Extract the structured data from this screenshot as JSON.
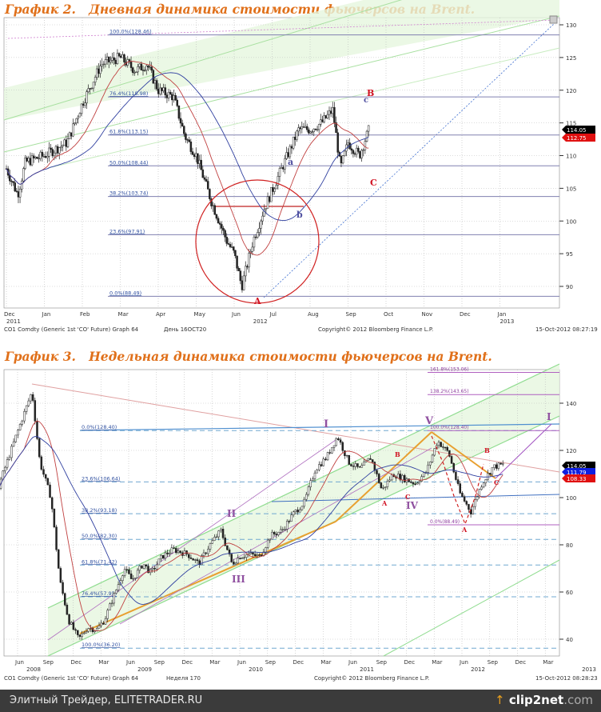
{
  "chart_data": [
    {
      "type": "candlestick",
      "title": "График 2.   Дневная динамика стоимости фьючерсов на Brent.",
      "xlabel": "",
      "ylabel": "",
      "ylim": [
        87,
        131
      ],
      "time_unit": "months since 1-Dec-2011",
      "y_ticks": [
        90,
        95,
        100,
        105,
        110,
        115,
        120,
        125,
        130
      ],
      "x_ticks": [
        "Dec",
        "Jan",
        "Feb",
        "Mar",
        "Apr",
        "May",
        "Jun",
        "Jul",
        "Aug",
        "Sep",
        "Oct",
        "Nov",
        "Dec",
        "Jan"
      ],
      "year_labels": [
        {
          "t": 0,
          "label": "2011"
        },
        {
          "t": 6.5,
          "label": "2012"
        },
        {
          "t": 13,
          "label": "2013"
        }
      ],
      "series": [
        {
          "name": "price",
          "t": [
            0,
            0.3,
            0.5,
            1,
            1.6,
            2,
            2.5,
            3,
            3.4,
            3.7,
            4,
            4.4,
            4.7,
            5,
            5.4,
            5.8,
            6,
            6.2,
            6.5,
            6.8,
            7.1,
            7.4,
            7.7,
            8,
            8.3,
            8.6,
            8.8,
            9,
            9.3,
            9.55
          ],
          "values": [
            108,
            104,
            109,
            110,
            112,
            118,
            124,
            125,
            123,
            124,
            120,
            119,
            113,
            110,
            103,
            97,
            95,
            90,
            97,
            102,
            106,
            110,
            114,
            114,
            115,
            117,
            108,
            112,
            110,
            114
          ]
        }
      ],
      "fib_levels": [
        {
          "label": "100.0%(128.46)",
          "value": 128.46
        },
        {
          "label": "76.4%(118.98)",
          "value": 118.98
        },
        {
          "label": "61.8%(113.15)",
          "value": 113.15
        },
        {
          "label": "50.0%(108.44)",
          "value": 108.44
        },
        {
          "label": "38.2%(103.74)",
          "value": 103.74
        },
        {
          "label": "23.6%(97.91)",
          "value": 97.91
        },
        {
          "label": "0.0%(88.49)",
          "value": 88.49
        }
      ],
      "wave_labels": [
        {
          "text": "A",
          "color": "#d01020"
        },
        {
          "text": "B",
          "color": "#d01020"
        },
        {
          "text": "C",
          "color": "#d01020"
        },
        {
          "text": "a",
          "color": "#5050a0"
        },
        {
          "text": "b",
          "color": "#5050a0"
        },
        {
          "text": "c",
          "color": "#5050a0"
        }
      ],
      "price_tags": [
        {
          "value": "114.05",
          "color": "#000000"
        },
        {
          "value": "112.75",
          "color": "#e01010"
        }
      ],
      "ma_colors": [
        "#c04040",
        "#3040a0"
      ]
    },
    {
      "type": "candlestick",
      "title": "График 3.   Недельная динамика стоимости фьючерсов на Brent.",
      "xlabel": "",
      "ylabel": "",
      "ylim": [
        33,
        155
      ],
      "time_unit": "year",
      "y_ticks": [
        40,
        60,
        80,
        100,
        120,
        140
      ],
      "x_ticks": [
        "Jun",
        "Sep",
        "Dec",
        "Mar",
        "Jun",
        "Sep",
        "Dec",
        "Mar",
        "Jun",
        "Sep",
        "Dec",
        "Mar",
        "Jun",
        "Sep",
        "Dec",
        "Mar",
        "Jun",
        "Sep",
        "Dec",
        "Mar"
      ],
      "year_labels": [
        {
          "t": 2008,
          "label": "2008"
        },
        {
          "t": 2009,
          "label": "2009"
        },
        {
          "t": 2010,
          "label": "2010"
        },
        {
          "t": 2011,
          "label": "2011"
        },
        {
          "t": 2012,
          "label": "2012"
        },
        {
          "t": 2013,
          "label": "2013"
        }
      ],
      "series": [
        {
          "name": "price",
          "t": [
            2008.25,
            2008.42,
            2008.55,
            2008.62,
            2008.72,
            2008.8,
            2008.88,
            2008.97,
            2009.05,
            2009.13,
            2009.2,
            2009.3,
            2009.38,
            2009.45,
            2009.55,
            2009.62,
            2009.72,
            2009.82,
            2009.95,
            2010.05,
            2010.15,
            2010.25,
            2010.35,
            2010.42,
            2010.5,
            2010.6,
            2010.7,
            2010.8,
            2010.9,
            2011.0,
            2011.1,
            2011.2,
            2011.3,
            2011.4,
            2011.5,
            2011.6,
            2011.7,
            2011.8,
            2011.9,
            2012.0,
            2012.1,
            2012.2,
            2012.3,
            2012.4,
            2012.5,
            2012.6,
            2012.7,
            2012.79
          ],
          "values": [
            105,
            128,
            145,
            115,
            100,
            65,
            48,
            40,
            45,
            44,
            48,
            60,
            70,
            65,
            72,
            68,
            75,
            78,
            76,
            72,
            80,
            86,
            72,
            75,
            76,
            75,
            84,
            86,
            93,
            98,
            112,
            117,
            126,
            115,
            112,
            117,
            103,
            110,
            108,
            106,
            111,
            124,
            119,
            102,
            94,
            106,
            113,
            114
          ]
        }
      ],
      "fib_levels": [
        {
          "label": "0.0%(128.40)",
          "value": 128.4
        },
        {
          "label": "23.6%(106.64)",
          "value": 106.64
        },
        {
          "label": "38.2%(93.18)",
          "value": 93.18
        },
        {
          "label": "50.0%(82.30)",
          "value": 82.3
        },
        {
          "label": "61.8%(71.42)",
          "value": 71.42
        },
        {
          "label": "76.4%(57.95)",
          "value": 57.95
        },
        {
          "label": "100.0%(36.20)",
          "value": 36.2
        }
      ],
      "ext_levels": [
        {
          "label": "161.8%(153.06)",
          "value": 153.06
        },
        {
          "label": "138.2%(143.65)",
          "value": 143.65
        },
        {
          "label": "100.0%(128.40)",
          "value": 128.4
        },
        {
          "label": "0.0%(88.49)",
          "value": 88.49
        }
      ],
      "wave_labels": [
        {
          "text": "I",
          "color": "#9050a0"
        },
        {
          "text": "II",
          "color": "#9050a0"
        },
        {
          "text": "III",
          "color": "#9050a0"
        },
        {
          "text": "IV",
          "color": "#9050a0"
        },
        {
          "text": "V",
          "color": "#9050a0"
        },
        {
          "text": "I",
          "color": "#9050a0"
        },
        {
          "text": "A",
          "color": "#d01020"
        },
        {
          "text": "B",
          "color": "#d01020"
        },
        {
          "text": "C",
          "color": "#d01020"
        },
        {
          "text": "B",
          "color": "#d01020"
        },
        {
          "text": "C",
          "color": "#d01020"
        },
        {
          "text": "A",
          "color": "#d01020"
        }
      ],
      "price_tags": [
        {
          "value": "114.05",
          "color": "#000000"
        },
        {
          "value": "111.79",
          "color": "#1020e0"
        },
        {
          "value": "108.33",
          "color": "#e01010"
        }
      ],
      "ma_colors": [
        "#c04040",
        "#3040a0"
      ]
    }
  ],
  "footer1": {
    "source": "CO1 Comdty (Generic 1st 'CO' Future) Graph 64",
    "period": "День 16OCT20",
    "copyright": "Copyright© 2012 Bloomberg Finance L.P.",
    "timestamp": "15-Oct-2012 08:27:19"
  },
  "footer2": {
    "source": "CO1 Comdty (Generic 1st 'CO' Future) Graph 64",
    "period": "Неделя 170",
    "copyright": "Copyright© 2012 Bloomberg Finance L.P.",
    "timestamp": "15-Oct-2012 08:28:23"
  },
  "bottom_bar": {
    "site": "Элитный Трейдер, ELITETRADER.RU",
    "logo": "clip2net",
    "logo_suffix": ".com"
  }
}
